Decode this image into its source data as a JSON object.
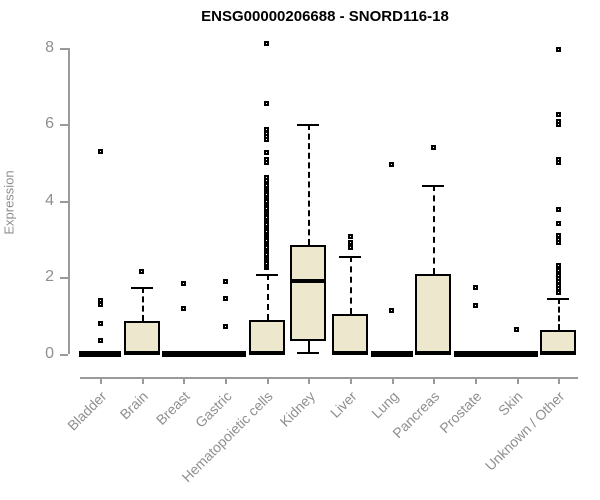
{
  "chart_data": {
    "type": "boxplot",
    "title": "ENSG00000206688 - SNORD116-18",
    "ylabel": "Expression",
    "xlabel": "",
    "ylim": [
      0,
      8
    ],
    "yticks": [
      0,
      2,
      4,
      6,
      8
    ],
    "grid": false,
    "legend": "none",
    "colors": {
      "box_fill": "#ece7cd",
      "box_border": "#000000",
      "axis_line": "#9a9a9a",
      "axis_text": "#8f8f8f",
      "title_text": "#000000"
    },
    "categories": [
      "Bladder",
      "Brain",
      "Breast",
      "Gastric",
      "Hematopoietic cells",
      "Kidney",
      "Liver",
      "Lung",
      "Pancreas",
      "Prostate",
      "Skin",
      "Unknown / Other"
    ],
    "series": [
      {
        "name": "Bladder",
        "q1": 0,
        "median": 0,
        "q3": 0,
        "whisker_low": 0,
        "whisker_high": 0,
        "outliers": [
          0.36,
          0.8,
          1.3,
          1.4,
          5.3
        ]
      },
      {
        "name": "Brain",
        "q1": 0,
        "median": 0.03,
        "q3": 0.85,
        "whisker_low": 0,
        "whisker_high": 1.75,
        "outliers": [
          2.15
        ]
      },
      {
        "name": "Breast",
        "q1": 0,
        "median": 0,
        "q3": 0,
        "whisker_low": 0,
        "whisker_high": 0,
        "outliers": [
          1.2,
          1.85
        ]
      },
      {
        "name": "Gastric",
        "q1": 0,
        "median": 0,
        "q3": 0,
        "whisker_low": 0,
        "whisker_high": 0,
        "outliers": [
          0.72,
          1.45,
          1.9
        ]
      },
      {
        "name": "Hematopoietic cells",
        "q1": 0,
        "median": 0.03,
        "q3": 0.88,
        "whisker_low": 0,
        "whisker_high": 2.1,
        "outliers": [
          2.25,
          2.31,
          2.37,
          2.43,
          2.49,
          2.55,
          2.61,
          2.67,
          2.73,
          2.79,
          2.85,
          2.91,
          2.97,
          3.03,
          3.09,
          3.15,
          3.21,
          3.27,
          3.33,
          3.39,
          3.45,
          3.51,
          3.57,
          3.63,
          3.69,
          3.75,
          3.81,
          3.87,
          3.93,
          3.99,
          4.05,
          4.11,
          4.17,
          4.23,
          4.29,
          4.35,
          4.41,
          4.47,
          4.53,
          4.62,
          5.0,
          5.07,
          5.25,
          5.6,
          5.67,
          5.76,
          5.85,
          6.55,
          8.1
        ]
      },
      {
        "name": "Kidney",
        "q1": 0.35,
        "median": 1.9,
        "q3": 2.85,
        "whisker_low": 0.05,
        "whisker_high": 6.0,
        "outliers": []
      },
      {
        "name": "Liver",
        "q1": 0,
        "median": 0.03,
        "q3": 1.05,
        "whisker_low": 0,
        "whisker_high": 2.55,
        "outliers": [
          2.78,
          2.92,
          3.08
        ]
      },
      {
        "name": "Lung",
        "q1": 0,
        "median": 0,
        "q3": 0,
        "whisker_low": 0,
        "whisker_high": 0,
        "outliers": [
          1.13,
          4.95
        ]
      },
      {
        "name": "Pancreas",
        "q1": 0,
        "median": 0.03,
        "q3": 2.1,
        "whisker_low": 0,
        "whisker_high": 4.4,
        "outliers": [
          5.4
        ]
      },
      {
        "name": "Prostate",
        "q1": 0,
        "median": 0,
        "q3": 0,
        "whisker_low": 0,
        "whisker_high": 0,
        "outliers": [
          1.26,
          1.73
        ]
      },
      {
        "name": "Skin",
        "q1": 0,
        "median": 0,
        "q3": 0,
        "whisker_low": 0,
        "whisker_high": 0,
        "outliers": [
          0.63
        ]
      },
      {
        "name": "Unknown / Other",
        "q1": 0,
        "median": 0.03,
        "q3": 0.63,
        "whisker_low": 0,
        "whisker_high": 1.45,
        "outliers": [
          1.6,
          1.7,
          1.79,
          1.88,
          1.97,
          2.06,
          2.17,
          2.3,
          2.9,
          3.0,
          3.1,
          3.41,
          3.76,
          5.0,
          5.08,
          6.0,
          6.07,
          6.25,
          7.95
        ]
      }
    ]
  }
}
